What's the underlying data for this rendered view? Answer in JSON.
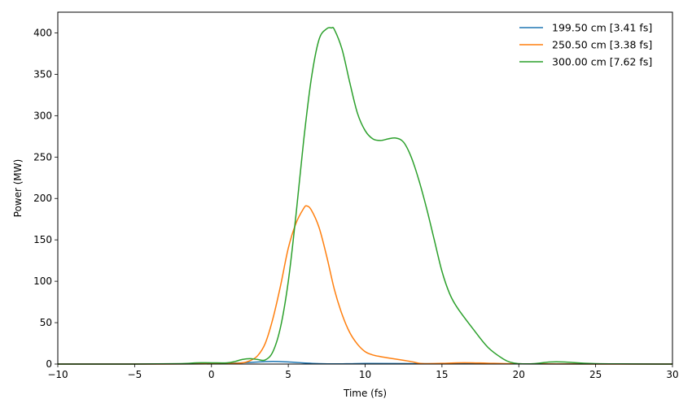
{
  "chart_data": {
    "type": "line",
    "xlabel": "Time (fs)",
    "ylabel": "Power (MW)",
    "xlim": [
      -10,
      30
    ],
    "ylim": [
      0,
      425
    ],
    "xticks": [
      -10,
      -5,
      0,
      5,
      10,
      15,
      20,
      25,
      30
    ],
    "xtick_labels": [
      "−10",
      "−5",
      "0",
      "5",
      "10",
      "15",
      "20",
      "25",
      "30"
    ],
    "yticks": [
      0,
      50,
      100,
      150,
      200,
      250,
      300,
      350,
      400
    ],
    "ytick_labels": [
      "0",
      "50",
      "100",
      "150",
      "200",
      "250",
      "300",
      "350",
      "400"
    ],
    "grid": false,
    "legend_position": "top-right",
    "series": [
      {
        "name": "199.50 cm [3.41 fs]",
        "color": "#1f77b4",
        "x": [
          -10,
          -5,
          0,
          1,
          2,
          3,
          3.5,
          4,
          4.5,
          5,
          5.5,
          6,
          6.5,
          7,
          8,
          9,
          10,
          12,
          15,
          20,
          25,
          30
        ],
        "y": [
          0,
          0,
          0.3,
          0.8,
          1.5,
          2.5,
          3,
          3.2,
          3,
          2.6,
          2,
          1.4,
          0.9,
          0.5,
          0.2,
          0.4,
          0.7,
          0.6,
          0.3,
          0.2,
          0.1,
          0
        ]
      },
      {
        "name": "250.50 cm [3.38 fs]",
        "color": "#ff7f0e",
        "x": [
          -10,
          -5,
          0,
          1,
          2,
          2.5,
          3,
          3.5,
          4,
          4.5,
          5,
          5.5,
          6,
          6.2,
          6.5,
          7,
          7.5,
          8,
          8.5,
          9,
          9.5,
          10,
          10.5,
          11,
          12,
          13,
          13.5,
          14,
          15,
          16,
          17,
          18,
          20,
          25,
          30
        ],
        "y": [
          0,
          0,
          0.2,
          0.5,
          1.5,
          4,
          10,
          25,
          55,
          95,
          140,
          170,
          188,
          191,
          186,
          165,
          130,
          90,
          60,
          38,
          24,
          15,
          11,
          9,
          6,
          3,
          1,
          0.5,
          0.8,
          1.5,
          1.5,
          1,
          0.3,
          0,
          0
        ]
      },
      {
        "name": "300.00 cm [7.62 fs]",
        "color": "#2ca02c",
        "x": [
          -10,
          -5,
          -2,
          -1,
          0,
          1,
          1.5,
          2,
          2.5,
          3,
          3.5,
          4,
          4.5,
          5,
          5.5,
          6,
          6.5,
          7,
          7.5,
          7.8,
          8,
          8.5,
          9,
          9.5,
          10,
          10.5,
          11,
          11.5,
          12,
          12.5,
          13,
          13.5,
          14,
          14.5,
          15,
          15.5,
          16,
          17,
          18,
          19,
          19.5,
          20,
          21,
          22,
          23,
          25,
          30
        ],
        "y": [
          0,
          0,
          0.5,
          1.5,
          1.5,
          1.5,
          3,
          5.5,
          6.5,
          5.5,
          5,
          15,
          45,
          100,
          180,
          270,
          345,
          392,
          405,
          406,
          404,
          380,
          340,
          303,
          282,
          272,
          270,
          272,
          273,
          268,
          250,
          222,
          188,
          150,
          112,
          85,
          68,
          43,
          20,
          6,
          2,
          0.5,
          0.5,
          2.5,
          2.5,
          0.5,
          0
        ]
      }
    ]
  }
}
